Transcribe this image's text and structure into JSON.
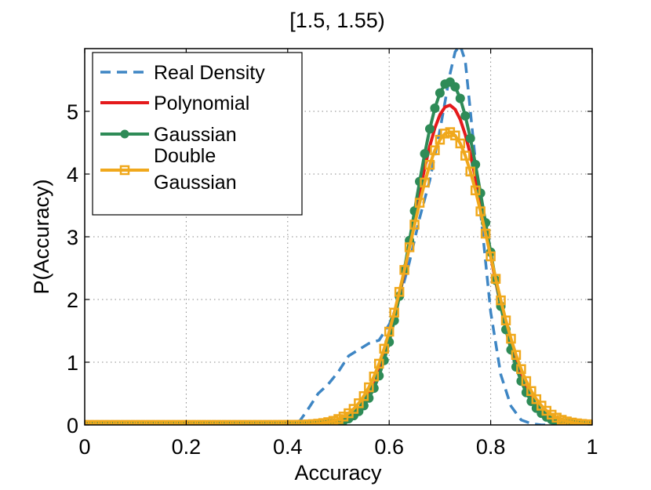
{
  "chart_data": {
    "type": "line",
    "title": "[1.5, 1.55)",
    "xlabel": "Accuracy",
    "ylabel": "P(Accuracy)",
    "xlim": [
      0,
      1
    ],
    "ylim": [
      0,
      6
    ],
    "xticks": [
      0,
      0.2,
      0.4,
      0.6,
      0.8,
      1
    ],
    "xtick_labels": [
      "0",
      "0.2",
      "0.4",
      "0.6",
      "0.8",
      "1"
    ],
    "yticks": [
      0,
      1,
      2,
      3,
      4,
      5
    ],
    "ytick_labels": [
      "0",
      "1",
      "2",
      "3",
      "4",
      "5"
    ],
    "grid": true,
    "legend_position": "top-left",
    "series": [
      {
        "name": "Real Density",
        "color": "#3e86c4",
        "style": "dashed",
        "marker": "none",
        "x": [
          0,
          0.42,
          0.44,
          0.46,
          0.48,
          0.5,
          0.52,
          0.54,
          0.56,
          0.58,
          0.6,
          0.62,
          0.64,
          0.66,
          0.68,
          0.7,
          0.72,
          0.73,
          0.74,
          0.75,
          0.76,
          0.78,
          0.8,
          0.82,
          0.84,
          0.86,
          0.88,
          0.9,
          1
        ],
        "y": [
          0,
          0.02,
          0.25,
          0.5,
          0.65,
          0.85,
          1.1,
          1.2,
          1.3,
          1.35,
          1.6,
          2.0,
          2.6,
          3.3,
          3.9,
          4.7,
          5.6,
          5.95,
          6.05,
          5.8,
          5.0,
          3.4,
          1.8,
          0.8,
          0.3,
          0.08,
          0.02,
          0,
          0
        ]
      },
      {
        "name": "Polynomial",
        "color": "#e41a1c",
        "style": "solid",
        "marker": "none",
        "gauss": {
          "amp": 5.1,
          "mu": 0.718,
          "sigma": 0.0725
        },
        "samples": 101
      },
      {
        "name": "Gaussian",
        "color": "#2e8b57",
        "style": "solid",
        "marker": "circle",
        "gauss": {
          "amp": 5.47,
          "mu": 0.718,
          "sigma": 0.07
        },
        "samples": 101
      },
      {
        "name": "Double Gaussian",
        "color": "#f0a81c",
        "style": "solid",
        "marker": "square",
        "gauss": {
          "amp": 4.67,
          "mu": 0.718,
          "sigma": 0.078
        },
        "samples": 101
      }
    ],
    "legend": [
      {
        "lines": [
          "Real Density"
        ]
      },
      {
        "lines": [
          "Polynomial"
        ]
      },
      {
        "lines": [
          "Gaussian"
        ]
      },
      {
        "lines": [
          "Double",
          "Gaussian"
        ]
      }
    ]
  }
}
